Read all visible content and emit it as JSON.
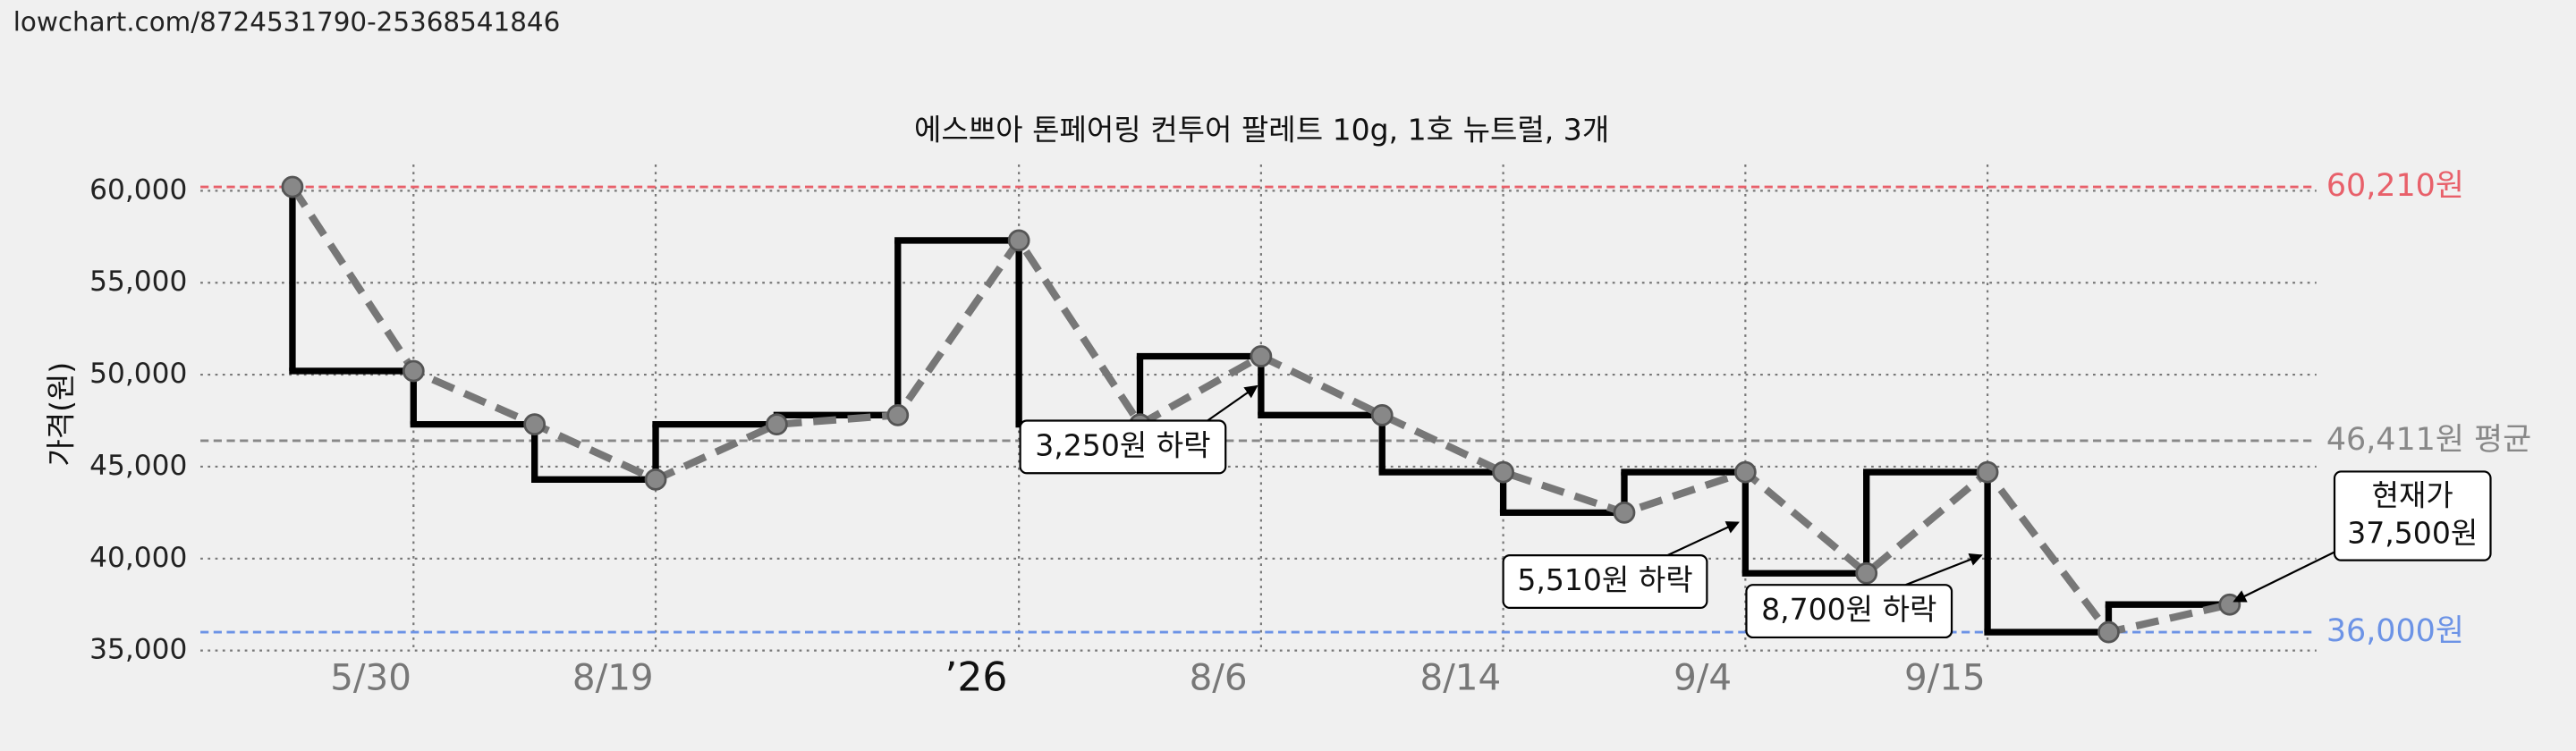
{
  "url": "lowchart.com/8724531790-25368541846",
  "chart_data": {
    "type": "line",
    "title": "에스쁘아 톤페어링 컨투어 팔레트 10g, 1호 뉴트럴, 3개",
    "ylabel": "가격(원)",
    "categories": [
      null,
      "5/30",
      null,
      "8/19",
      null,
      null,
      "’26",
      null,
      "8/6",
      null,
      "8/14",
      null,
      "9/4",
      null,
      "9/15",
      null,
      null
    ],
    "values": [
      60210,
      50200,
      47300,
      44300,
      47300,
      47800,
      57300,
      47300,
      51000,
      47800,
      44700,
      42500,
      44700,
      39200,
      44700,
      36000,
      37500
    ],
    "step_color": "#000000",
    "line_color": "#777777",
    "ylim": [
      35000,
      61000
    ],
    "yticks": [
      {
        "value": 35000,
        "label": "35,000"
      },
      {
        "value": 40000,
        "label": "40,000"
      },
      {
        "value": 45000,
        "label": "45,000"
      },
      {
        "value": 50000,
        "label": "50,000"
      },
      {
        "value": 55000,
        "label": "55,000"
      },
      {
        "value": 60000,
        "label": "60,000"
      }
    ],
    "grid": true,
    "reference_lines": [
      {
        "value": 60210,
        "label": "60,210원",
        "color": "#e8606a"
      },
      {
        "value": 46411,
        "label": "46,411원 평균",
        "color": "#888888"
      },
      {
        "value": 36000,
        "label": "36,000원",
        "color": "#6c93e6"
      }
    ],
    "annotations": [
      [
        "3,250원 하락"
      ],
      [
        "5,510원 하락"
      ],
      [
        "8,700원 하락"
      ],
      [
        "현재가",
        "37,500원"
      ]
    ]
  }
}
